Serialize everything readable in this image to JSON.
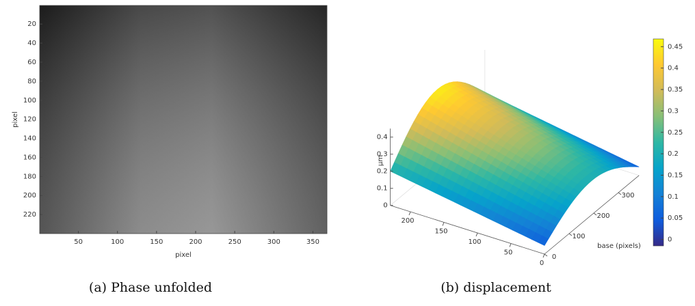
{
  "chart_data": [
    {
      "type": "image",
      "xlabel": "pixel",
      "ylabel": "pixel",
      "xlim": [
        0.5,
        368
      ],
      "ylim": [
        0.5,
        240
      ],
      "xticks": [
        50,
        100,
        150,
        200,
        250,
        300,
        350
      ],
      "yticks": [
        20,
        40,
        60,
        80,
        100,
        120,
        140,
        160,
        180,
        200,
        220
      ],
      "colormap": "gray",
      "caption": "(a) Phase unfolded"
    },
    {
      "type": "surface",
      "zlabel": "μm",
      "ylabel": "base (pixels)",
      "xlim": [
        0,
        230
      ],
      "ylim": [
        0,
        384
      ],
      "zlim": [
        0,
        0.45
      ],
      "xticks": [
        200,
        150,
        100,
        50,
        0
      ],
      "yticks": [
        0,
        100,
        200,
        300
      ],
      "zticks": [
        0,
        0.1,
        0.2,
        0.3,
        0.4
      ],
      "clim": [
        -0.015,
        0.468
      ],
      "cticks": [
        0,
        0.05,
        0.1,
        0.15,
        0.2,
        0.25,
        0.3,
        0.35,
        0.4,
        0.45
      ],
      "colormap": "parula",
      "caption": "(b) displacement"
    }
  ]
}
